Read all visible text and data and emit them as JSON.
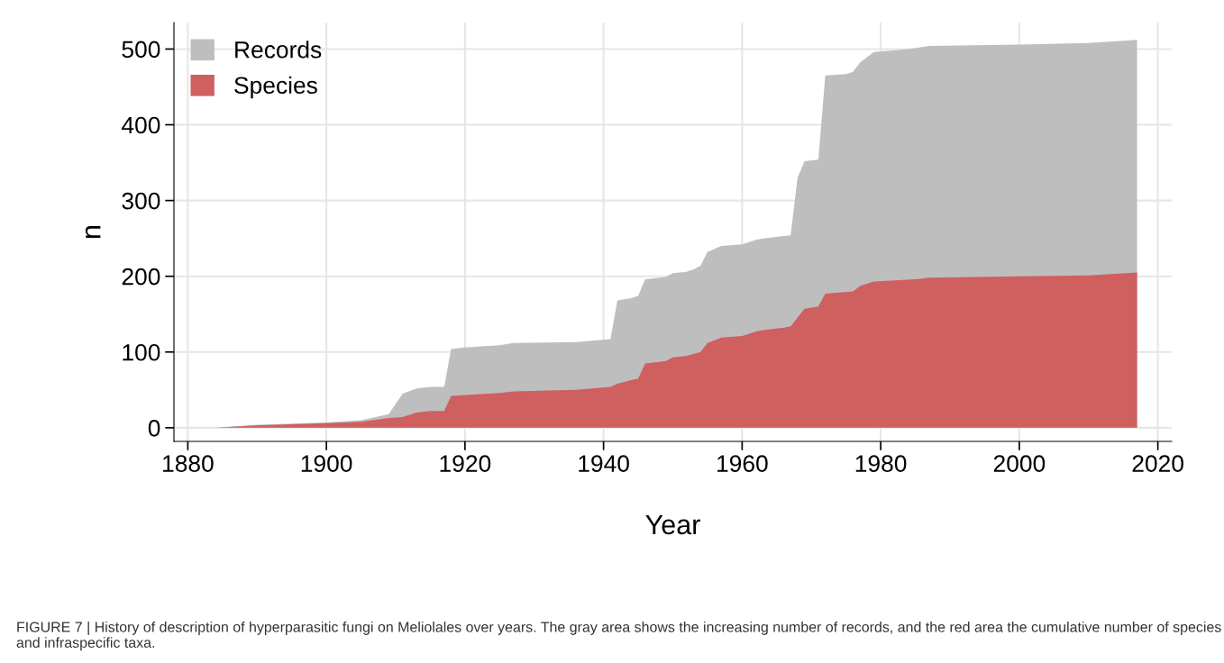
{
  "chart_data": {
    "type": "area",
    "xlabel": "Year",
    "ylabel": "n",
    "xlim": [
      1878,
      2022
    ],
    "ylim": [
      -18,
      535
    ],
    "xticks": [
      1880,
      1900,
      1920,
      1940,
      1960,
      1980,
      2000,
      2020
    ],
    "yticks": [
      0,
      100,
      200,
      300,
      400,
      500
    ],
    "grid": true,
    "legend": "top left",
    "series": [
      {
        "name": "Records",
        "color": "#bebebe",
        "x": [
          1884,
          1890,
          1900,
          1905,
          1909,
          1911,
          1913,
          1915,
          1917,
          1918,
          1920,
          1925,
          1927,
          1936,
          1941,
          1942,
          1944,
          1945,
          1946,
          1949,
          1950,
          1952,
          1953,
          1954,
          1955,
          1957,
          1960,
          1962,
          1963,
          1966,
          1967,
          1968,
          1969,
          1971,
          1972,
          1975,
          1976,
          1977,
          1979,
          1984,
          1987,
          2000,
          2010,
          2017
        ],
        "values": [
          0,
          4,
          7,
          10,
          18,
          45,
          52,
          54,
          54,
          104,
          106,
          109,
          112,
          113,
          117,
          168,
          171,
          174,
          196,
          199,
          204,
          206,
          209,
          214,
          232,
          240,
          242,
          248,
          250,
          253,
          254,
          330,
          352,
          354,
          465,
          467,
          470,
          482,
          496,
          500,
          504,
          506,
          508,
          512
        ]
      },
      {
        "name": "Species",
        "color": "#d05f5f",
        "x": [
          1884,
          1890,
          1900,
          1905,
          1909,
          1911,
          1913,
          1915,
          1917,
          1918,
          1925,
          1927,
          1936,
          1941,
          1942,
          1944,
          1945,
          1946,
          1948,
          1949,
          1950,
          1952,
          1954,
          1955,
          1957,
          1960,
          1962,
          1963,
          1966,
          1967,
          1969,
          1971,
          1972,
          1976,
          1977,
          1979,
          1985,
          1987,
          2000,
          2010,
          2017
        ],
        "values": [
          0,
          3,
          6,
          8,
          13,
          14,
          20,
          22,
          22,
          42,
          46,
          48,
          50,
          54,
          58,
          63,
          65,
          85,
          87,
          88,
          93,
          95,
          100,
          112,
          119,
          121,
          127,
          129,
          132,
          134,
          157,
          160,
          177,
          180,
          187,
          193,
          196,
          198,
          200,
          201,
          205
        ]
      }
    ],
    "annotations": [
      "FIGURE 7 | History of description of hyperparasitic fungi on Meliolales over years. The gray area shows the increasing number of records, and the red area the cumulative number of species and infraspecific taxa."
    ]
  }
}
